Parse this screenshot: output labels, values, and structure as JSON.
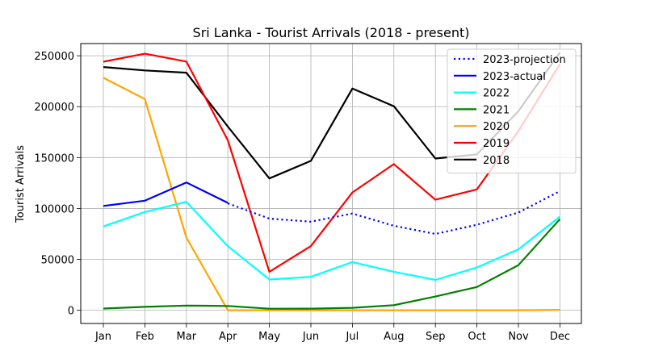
{
  "chart_data": {
    "type": "line",
    "title": "Sri Lanka - Tourist Arrivals (2018 - present)",
    "xlabel": "",
    "ylabel": "Tourist Arrivals",
    "categories": [
      "Jan",
      "Feb",
      "Mar",
      "Apr",
      "May",
      "Jun",
      "Jul",
      "Aug",
      "Sep",
      "Oct",
      "Nov",
      "Dec"
    ],
    "ylim": [
      -13000,
      262000
    ],
    "yticks": [
      0,
      50000,
      100000,
      150000,
      200000,
      250000
    ],
    "ytick_labels": [
      "0",
      "50000",
      "100000",
      "150000",
      "200000",
      "250000"
    ],
    "grid": true,
    "legend_position": "top-right",
    "series": [
      {
        "name": "2023-projection",
        "color": "#0000ff",
        "dashed": true,
        "values": [
          null,
          null,
          null,
          105000,
          90000,
          87000,
          95000,
          83000,
          75000,
          84000,
          96000,
          117000
        ]
      },
      {
        "name": "2023-actual",
        "color": "#0000ff",
        "dashed": false,
        "values": [
          102500,
          107600,
          125500,
          105500,
          null,
          null,
          null,
          null,
          null,
          null,
          null,
          null
        ]
      },
      {
        "name": "2022",
        "color": "#00ffff",
        "dashed": false,
        "values": [
          82300,
          96500,
          106500,
          62900,
          30200,
          32800,
          47300,
          37800,
          29800,
          42000,
          59800,
          91900
        ]
      },
      {
        "name": "2021",
        "color": "#008000",
        "dashed": false,
        "values": [
          1700,
          3300,
          4600,
          4200,
          1500,
          1600,
          2400,
          5000,
          13500,
          22800,
          44300,
          89500
        ]
      },
      {
        "name": "2020",
        "color": "#ffa500",
        "dashed": false,
        "values": [
          228400,
          207500,
          71400,
          0,
          0,
          0,
          0,
          0,
          0,
          0,
          0,
          400
        ]
      },
      {
        "name": "2019",
        "color": "#ff0000",
        "dashed": false,
        "values": [
          244200,
          252000,
          244300,
          166900,
          37800,
          63000,
          115700,
          143600,
          108600,
          118700,
          176100,
          241700
        ]
      },
      {
        "name": "2018",
        "color": "#000000",
        "dashed": false,
        "values": [
          238900,
          235600,
          233400,
          180400,
          129500,
          146800,
          217800,
          200400,
          149100,
          153100,
          195600,
          253200
        ]
      }
    ]
  }
}
